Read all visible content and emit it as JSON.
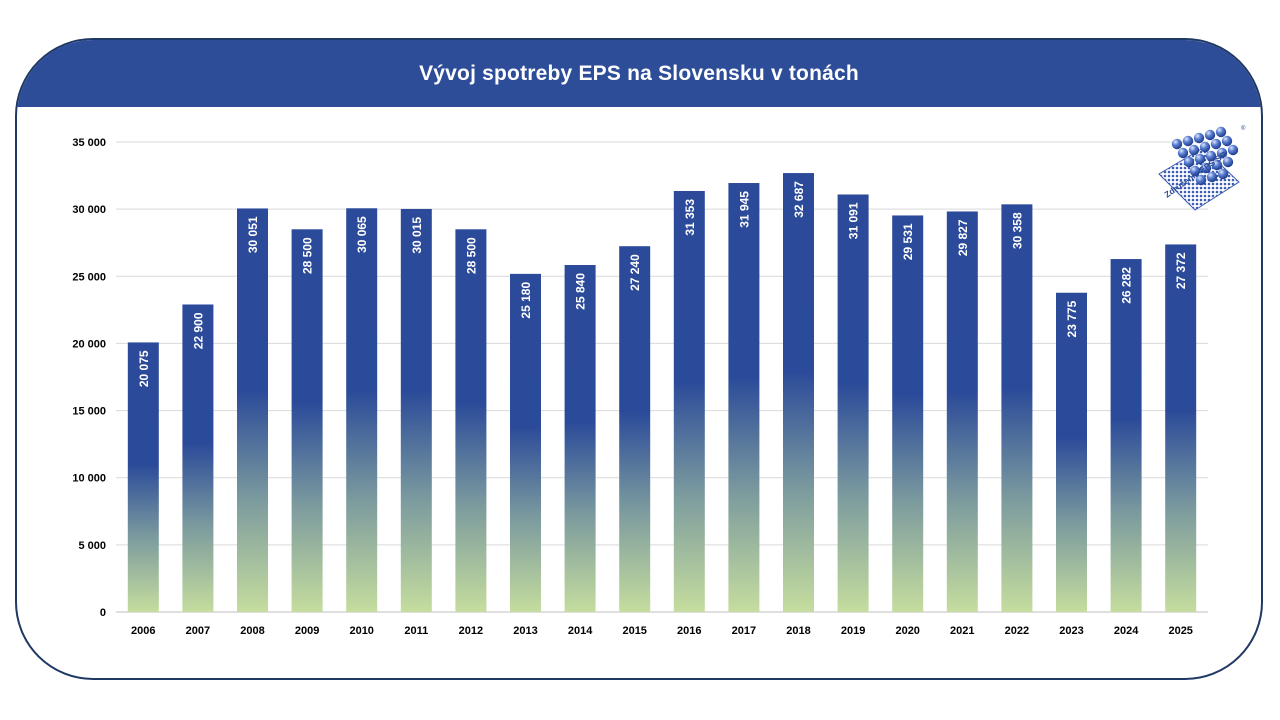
{
  "header": {
    "title": "Vývoj spotreby EPS na Slovensku v tonách"
  },
  "logo": {
    "caption": "Združenie EPS SR",
    "registered": "®"
  },
  "colors": {
    "brand_blue": "#2e4d99",
    "bar_top": "#2c4a9a",
    "bar_bottom": "#c3dc9f",
    "frame": "#1f3864",
    "grid": "#d9d9d9"
  },
  "chart_data": {
    "type": "bar",
    "title": "Vývoj spotreby EPS na Slovensku v tonách",
    "xlabel": "",
    "ylabel": "",
    "categories": [
      "2006",
      "2007",
      "2008",
      "2009",
      "2010",
      "2011",
      "2012",
      "2013",
      "2014",
      "2015",
      "2016",
      "2017",
      "2018",
      "2019",
      "2020",
      "2021",
      "2022",
      "2023",
      "2024",
      "2025"
    ],
    "values": [
      20075,
      22900,
      30051,
      28500,
      30065,
      30015,
      28500,
      25180,
      25840,
      27240,
      31353,
      31945,
      32687,
      31091,
      29531,
      29827,
      30358,
      23775,
      26282,
      27372
    ],
    "value_labels": [
      "20 075",
      "22 900",
      "30 051",
      "28 500",
      "30 065",
      "30 015",
      "28 500",
      "25 180",
      "25 840",
      "27 240",
      "31 353",
      "31 945",
      "32 687",
      "31 091",
      "29 531",
      "29 827",
      "30 358",
      "23 775",
      "26 282",
      "27 372"
    ],
    "yticks": [
      0,
      5000,
      10000,
      15000,
      20000,
      25000,
      30000,
      35000
    ],
    "ytick_labels": [
      "0",
      "5 000",
      "10 000",
      "15 000",
      "20 000",
      "25 000",
      "30 000",
      "35 000"
    ],
    "ylim": [
      0,
      35000
    ],
    "grid": true,
    "legend": "none"
  }
}
